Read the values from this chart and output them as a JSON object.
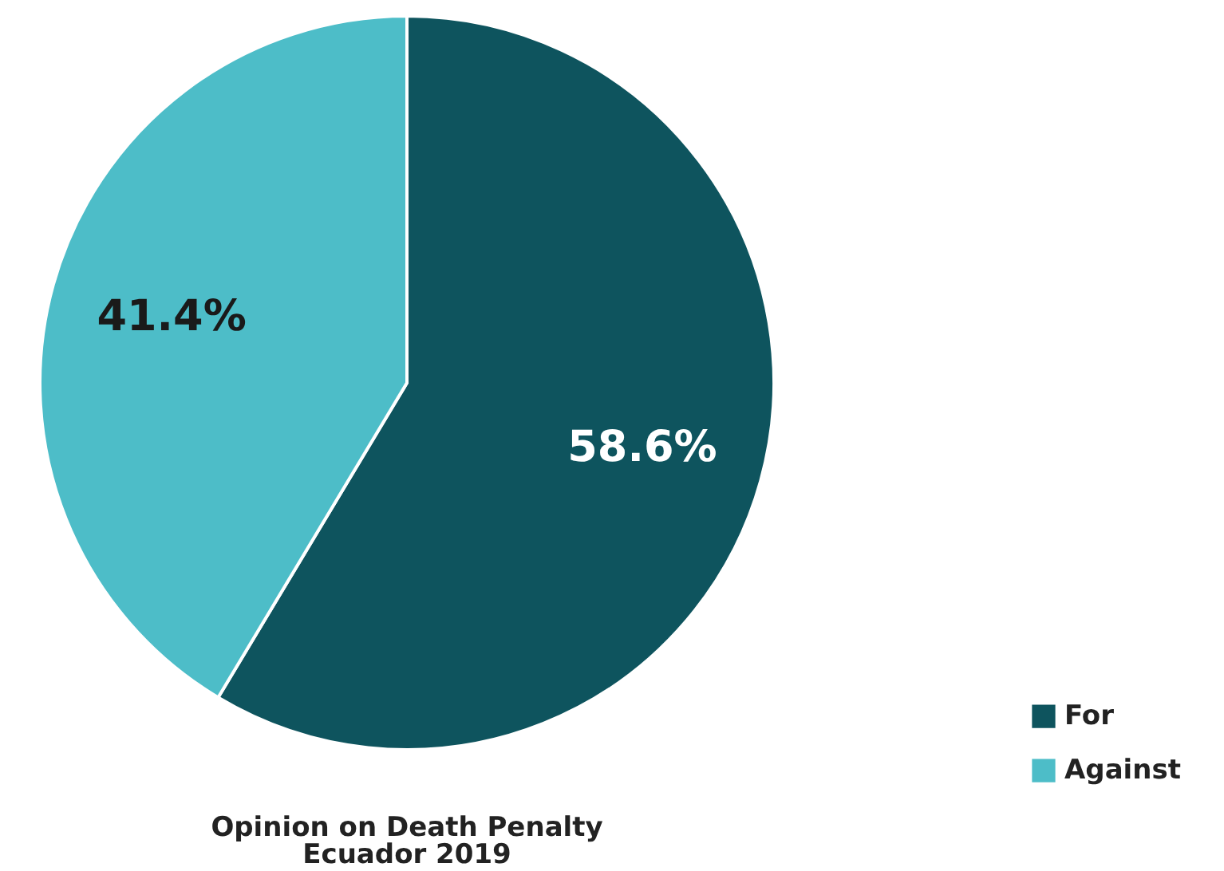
{
  "chart_data": {
    "type": "pie",
    "title": "Opinion on Death Penalty",
    "subtitle": "Ecuador 2019",
    "categories": [
      "For",
      "Against"
    ],
    "values": [
      58.6,
      41.4
    ],
    "colors": [
      "#0e545e",
      "#4dbdc8"
    ],
    "value_labels": [
      "58.6%",
      "41.4%"
    ],
    "legend": "bottom right"
  }
}
